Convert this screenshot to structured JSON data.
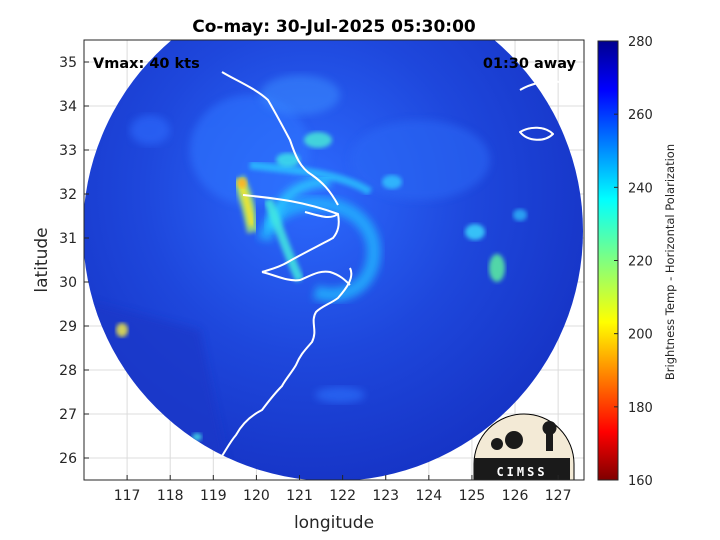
{
  "title": "Co-may: 30-Jul-2025 05:30:00",
  "annotations": {
    "vmax": "Vmax: 40 kts",
    "time_away": "01:30 away"
  },
  "axes": {
    "xlabel": "longitude",
    "ylabel": "latitude",
    "x_ticks": [
      "117",
      "118",
      "119",
      "120",
      "121",
      "122",
      "123",
      "124",
      "125",
      "126",
      "127"
    ],
    "y_ticks": [
      "35",
      "34",
      "33",
      "32",
      "31",
      "30",
      "29",
      "28",
      "27",
      "26"
    ],
    "xlim": [
      116,
      127.6
    ],
    "ylim": [
      25.5,
      35.5
    ],
    "grid": true
  },
  "colorbar": {
    "label": "Brightness Temp - Horizontal Polarization",
    "ticks": [
      "280",
      "260",
      "240",
      "220",
      "200",
      "180",
      "160"
    ],
    "range": [
      160,
      280
    ],
    "colormap": "jet",
    "orientation": "vertical"
  },
  "logo": {
    "text": "CIMSS"
  },
  "colors": {
    "background_disk": "#1f44d8",
    "coast": "#ffffff",
    "warm_band": "#f7ea2e"
  }
}
